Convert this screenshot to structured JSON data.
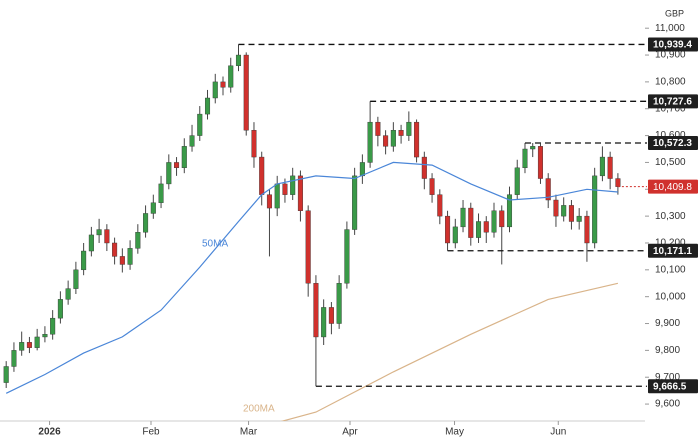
{
  "chart_data": {
    "type": "candlestick",
    "currency": "GBP",
    "up_color": "#3a9a48",
    "down_color": "#d0312d",
    "open": [
      9680,
      9740,
      9800,
      9830,
      9810,
      9850,
      9860,
      9920,
      9990,
      10030,
      10100,
      10170,
      10230,
      10250,
      10200,
      10150,
      10120,
      10180,
      10240,
      10310,
      10350,
      10420,
      10500,
      10480,
      10560,
      10600,
      10680,
      10740,
      10800,
      10780,
      10860,
      10900,
      10620,
      10520,
      10380,
      10330,
      10420,
      10380,
      10450,
      10320,
      10050,
      9850,
      9960,
      9900,
      10050,
      10250,
      10450,
      10500,
      10650,
      10600,
      10560,
      10620,
      10600,
      10650,
      10520,
      10440,
      10380,
      10300,
      10200,
      10260,
      10330,
      10220,
      10280,
      10240,
      10320,
      10260,
      10380,
      10480,
      10550,
      10560,
      10440,
      10360,
      10300,
      10340,
      10280,
      10300,
      10200,
      10450,
      10520,
      10440
    ],
    "high": [
      9760,
      9830,
      9870,
      9850,
      9880,
      9890,
      9950,
      10020,
      10060,
      10130,
      10200,
      10260,
      10290,
      10270,
      10220,
      10180,
      10210,
      10270,
      10340,
      10380,
      10450,
      10530,
      10520,
      10590,
      10640,
      10710,
      10770,
      10830,
      10820,
      10890,
      10939.4,
      10910,
      10650,
      10540,
      10400,
      10450,
      10440,
      10480,
      10470,
      10340,
      10080,
      9990,
      9980,
      10080,
      10280,
      10480,
      10530,
      10727.6,
      10670,
      10620,
      10650,
      10640,
      10690,
      10660,
      10540,
      10460,
      10400,
      10320,
      10290,
      10360,
      10350,
      10310,
      10300,
      10350,
      10340,
      10410,
      10510,
      10572.3,
      10572.3,
      10570,
      10460,
      10380,
      10370,
      10360,
      10330,
      10320,
      10480,
      10560,
      10540,
      10460
    ],
    "low": [
      9660,
      9720,
      9780,
      9790,
      9800,
      9830,
      9840,
      9900,
      9970,
      10010,
      10080,
      10150,
      10200,
      10170,
      10120,
      10090,
      10100,
      10160,
      10220,
      10290,
      10330,
      10400,
      10450,
      10460,
      10540,
      10580,
      10660,
      10720,
      10750,
      10760,
      10840,
      10600,
      10480,
      10340,
      10150,
      10300,
      10350,
      10360,
      10280,
      10000,
      9666.5,
      9820,
      9860,
      9880,
      10030,
      10230,
      10420,
      10480,
      10560,
      10530,
      10540,
      10570,
      10580,
      10500,
      10400,
      10350,
      10270,
      10171.1,
      10180,
      10240,
      10190,
      10200,
      10200,
      10220,
      10120,
      10240,
      10360,
      10460,
      10520,
      10420,
      10330,
      10260,
      10280,
      10250,
      10250,
      10130,
      10180,
      10430,
      10400,
      10380
    ],
    "close": [
      9740,
      9800,
      9830,
      9810,
      9850,
      9860,
      9920,
      9990,
      10030,
      10100,
      10170,
      10230,
      10250,
      10200,
      10150,
      10120,
      10180,
      10240,
      10310,
      10350,
      10420,
      10500,
      10480,
      10560,
      10600,
      10680,
      10740,
      10800,
      10780,
      10860,
      10900,
      10620,
      10520,
      10380,
      10330,
      10420,
      10380,
      10450,
      10320,
      10050,
      9850,
      9960,
      9900,
      10050,
      10250,
      10450,
      10500,
      10650,
      10600,
      10560,
      10620,
      10600,
      10650,
      10520,
      10440,
      10380,
      10300,
      10200,
      10260,
      10330,
      10220,
      10280,
      10240,
      10320,
      10260,
      10380,
      10480,
      10550,
      10560,
      10440,
      10360,
      10300,
      10340,
      10280,
      10300,
      10200,
      10450,
      10520,
      10440,
      10409.8
    ],
    "moving_averages": [
      {
        "name": "50MA",
        "color": "#4a86d8",
        "x": [
          0,
          5,
          10,
          15,
          20,
          25,
          30,
          33,
          35,
          40,
          45,
          50,
          55,
          60,
          65,
          70,
          75,
          79
        ],
        "values": [
          9640,
          9710,
          9790,
          9850,
          9950,
          10110,
          10280,
          10380,
          10420,
          10450,
          10440,
          10500,
          10490,
          10420,
          10360,
          10370,
          10400,
          10390
        ]
      },
      {
        "name": "200MA",
        "color": "#d9b48a",
        "x": [
          31,
          40,
          50,
          60,
          70,
          79
        ],
        "values": [
          9500,
          9570,
          9720,
          9860,
          9990,
          10050
        ]
      }
    ],
    "levels": [
      {
        "value": 10939.4,
        "label": "10,939.4",
        "start": 30
      },
      {
        "value": 10727.6,
        "label": "10,727.6",
        "start": 47
      },
      {
        "value": 10572.3,
        "label": "10,572.3",
        "start": 67
      },
      {
        "value": 10171.1,
        "label": "10,171.1",
        "start": 57
      },
      {
        "value": 9666.5,
        "label": "9,666.5",
        "start": 40
      }
    ],
    "last_price": {
      "value": 10409.8,
      "label": "10,409.8"
    },
    "xlim": [
      -0.8,
      82.5
    ],
    "xticks": [
      {
        "value": 5.6,
        "label": "2026"
      },
      {
        "value": 18.7,
        "label": "Feb"
      },
      {
        "value": 31.3,
        "label": "Mar"
      },
      {
        "value": 44.4,
        "label": "Apr"
      },
      {
        "value": 57.9,
        "label": "May"
      },
      {
        "value": 71.3,
        "label": "Jun"
      }
    ],
    "ylim": [
      9455,
      11105
    ],
    "yticks": [
      {
        "value": 9600,
        "label": "9,600"
      },
      {
        "value": 9700,
        "label": "9,700"
      },
      {
        "value": 9800,
        "label": "9,800"
      },
      {
        "value": 9900,
        "label": "9,900"
      },
      {
        "value": 10000,
        "label": "10,000"
      },
      {
        "value": 10100,
        "label": "10,100"
      },
      {
        "value": 10200,
        "label": "10,200"
      },
      {
        "value": 10300,
        "label": "10,300"
      },
      {
        "value": 10400,
        "label": "10,400"
      },
      {
        "value": 10500,
        "label": "10,500"
      },
      {
        "value": 10600,
        "label": "10,600"
      },
      {
        "value": 10700,
        "label": "10,700"
      },
      {
        "value": 10800,
        "label": "10,800"
      },
      {
        "value": 10900,
        "label": "10,900"
      },
      {
        "value": 11000,
        "label": "11,000"
      }
    ]
  }
}
